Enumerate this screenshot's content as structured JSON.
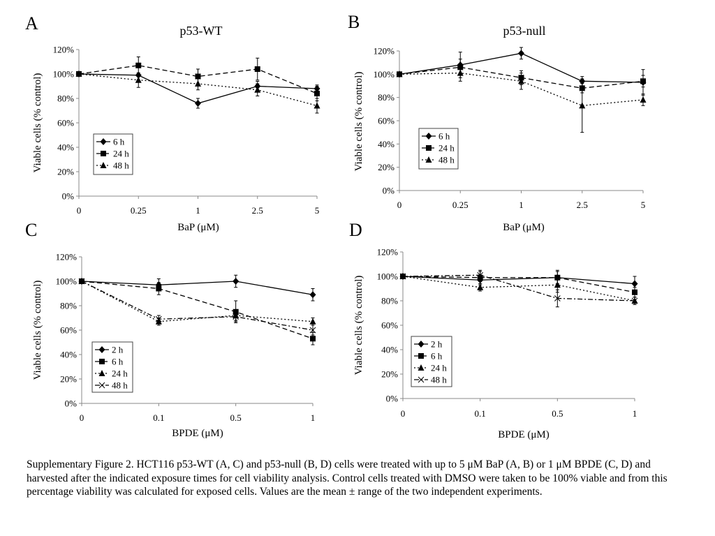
{
  "caption": "Supplementary Figure 2. HCT116 p53-WT (A, C) and p53-null (B, D) cells were treated with up to 5 μM BaP (A, B) or 1 μM BPDE (C, D) and harvested after the indicated exposure times for cell viability analysis. Control cells treated with DMSO were taken to be 100% viable and from this percentage viability was calculated for exposed cells. Values are the mean ± range of the two independent experiments.",
  "chart_data": [
    {
      "type": "line",
      "panel": "A",
      "title": "p53-WT",
      "xlabel": "BaP (μM)",
      "ylabel": "Viable cells (% control)",
      "categories": [
        "0",
        "0.25",
        "1",
        "2.5",
        "5"
      ],
      "ylim": [
        0,
        120
      ],
      "yticks": [
        "0%",
        "20%",
        "40%",
        "60%",
        "80%",
        "100%",
        "120%"
      ],
      "legend_position": "bottom-left",
      "series": [
        {
          "name": "6 h",
          "marker": "diamond",
          "dash": "solid",
          "values": [
            100,
            99,
            76,
            90,
            88
          ],
          "err": [
            0,
            0,
            4,
            4,
            3
          ]
        },
        {
          "name": "24 h",
          "marker": "square",
          "dash": "dashed",
          "values": [
            100,
            107,
            98,
            104,
            84
          ],
          "err": [
            0,
            7,
            6,
            9,
            6
          ]
        },
        {
          "name": "48 h",
          "marker": "triangle",
          "dash": "dotted",
          "values": [
            100,
            95,
            92,
            87,
            74
          ],
          "err": [
            0,
            6,
            5,
            5,
            6
          ]
        }
      ]
    },
    {
      "type": "line",
      "panel": "B",
      "title": "p53-null",
      "xlabel": "BaP (μM)",
      "ylabel": "Viable cells (% control)",
      "categories": [
        "0",
        "0.25",
        "1",
        "2.5",
        "5"
      ],
      "ylim": [
        0,
        120
      ],
      "yticks": [
        "0%",
        "20%",
        "40%",
        "60%",
        "80%",
        "100%",
        "120%"
      ],
      "legend_position": "bottom-left",
      "series": [
        {
          "name": "6 h",
          "marker": "diamond",
          "dash": "solid",
          "values": [
            100,
            108,
            118,
            94,
            93
          ],
          "err": [
            0,
            11,
            5,
            4,
            11
          ]
        },
        {
          "name": "24 h",
          "marker": "square",
          "dash": "dashed",
          "values": [
            100,
            106,
            97,
            88,
            94
          ],
          "err": [
            0,
            7,
            6,
            4,
            5
          ]
        },
        {
          "name": "48 h",
          "marker": "triangle",
          "dash": "dotted",
          "values": [
            100,
            101,
            94,
            73,
            78
          ],
          "err": [
            0,
            7,
            7,
            23,
            5
          ]
        }
      ]
    },
    {
      "type": "line",
      "panel": "C",
      "title": "",
      "xlabel": "BPDE (μM)",
      "ylabel": "Viable cells (% control)",
      "categories": [
        "0",
        "0.1",
        "0.5",
        "1"
      ],
      "ylim": [
        0,
        120
      ],
      "yticks": [
        "0%",
        "20%",
        "40%",
        "60%",
        "80%",
        "100%",
        "120%"
      ],
      "legend_position": "bottom-left",
      "series": [
        {
          "name": "2 h",
          "marker": "diamond",
          "dash": "solid",
          "values": [
            100,
            97,
            100,
            89
          ],
          "err": [
            0,
            5,
            5,
            5
          ]
        },
        {
          "name": "6 h",
          "marker": "square",
          "dash": "dashed",
          "values": [
            100,
            94,
            75,
            53
          ],
          "err": [
            0,
            5,
            9,
            5
          ]
        },
        {
          "name": "24 h",
          "marker": "triangle",
          "dash": "dotted",
          "values": [
            100,
            67,
            72,
            67
          ],
          "err": [
            0,
            3,
            4,
            3
          ]
        },
        {
          "name": "48 h",
          "marker": "cross",
          "dash": "dashdot",
          "values": [
            100,
            69,
            71,
            60
          ],
          "err": [
            0,
            3,
            4,
            4
          ]
        }
      ]
    },
    {
      "type": "line",
      "panel": "D",
      "title": "",
      "xlabel": "BPDE (μM)",
      "ylabel": "Viable cells (% control)",
      "categories": [
        "0",
        "0.1",
        "0.5",
        "1"
      ],
      "ylim": [
        0,
        120
      ],
      "yticks": [
        "0%",
        "20%",
        "40%",
        "60%",
        "80%",
        "100%",
        "120%"
      ],
      "legend_position": "bottom-left",
      "series": [
        {
          "name": "2 h",
          "marker": "diamond",
          "dash": "solid",
          "values": [
            100,
            97,
            99,
            94
          ],
          "err": [
            0,
            4,
            5,
            6
          ]
        },
        {
          "name": "6 h",
          "marker": "square",
          "dash": "dashed",
          "values": [
            100,
            99,
            99,
            87
          ],
          "err": [
            0,
            5,
            6,
            4
          ]
        },
        {
          "name": "24 h",
          "marker": "triangle",
          "dash": "dotted",
          "values": [
            100,
            91,
            93,
            80
          ],
          "err": [
            0,
            3,
            6,
            3
          ]
        },
        {
          "name": "48 h",
          "marker": "cross",
          "dash": "dashdot",
          "values": [
            100,
            101,
            82,
            80
          ],
          "err": [
            0,
            4,
            7,
            3
          ]
        }
      ]
    }
  ]
}
